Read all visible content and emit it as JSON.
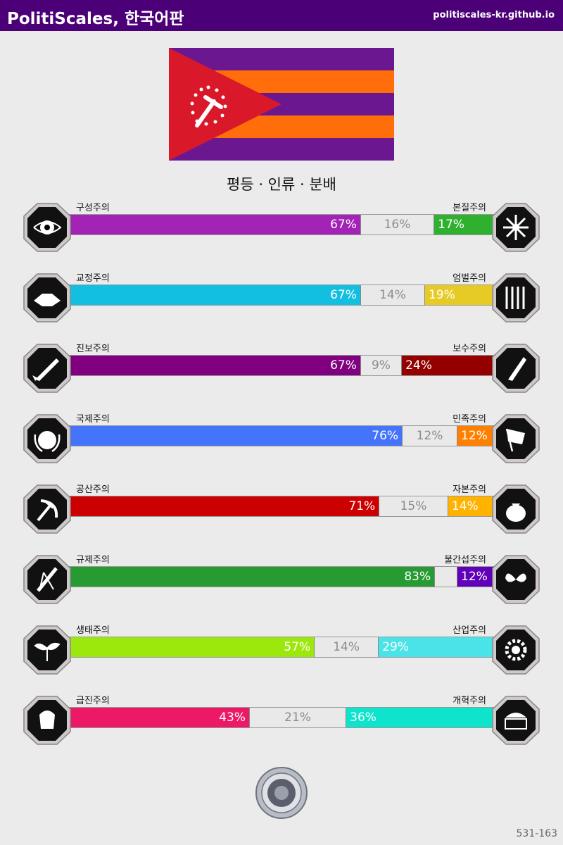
{
  "header": {
    "title": "PolitiScales, 한국어판",
    "url": "politiscales-kr.github.io"
  },
  "headline": "평등 · 인류 · 분배",
  "colors": {
    "header": "#4b0078",
    "flag_stripe_purple": "#6a1790",
    "flag_stripe_orange": "#ff6e0a",
    "flag_triangle": "#d9192a"
  },
  "axes": [
    {
      "left_label": "구성주의",
      "right_label": "본질주의",
      "left": 67,
      "mid": 16,
      "right": 17,
      "left_text": "67%",
      "mid_text": "16%",
      "right_text": "17%",
      "left_color": "#a323b7",
      "right_color": "#2fb12f",
      "left_icon": "eye-web-icon",
      "right_icon": "dna-flower-icon"
    },
    {
      "left_label": "교정주의",
      "right_label": "엄벌주의",
      "left": 67,
      "mid": 14,
      "right": 19,
      "left_text": "67%",
      "mid_text": "14%",
      "right_text": "19%",
      "left_color": "#13bfe0",
      "right_color": "#e6ca25",
      "left_icon": "handshake-icon",
      "right_icon": "prison-bars-icon"
    },
    {
      "left_label": "진보주의",
      "right_label": "보수주의",
      "left": 67,
      "mid": 9,
      "right": 24,
      "left_text": "67%",
      "mid_text": "9%",
      "right_text": "24%",
      "left_color": "#800080",
      "right_color": "#940000",
      "left_icon": "rocket-icon",
      "right_icon": "quill-pen-icon"
    },
    {
      "left_label": "국제주의",
      "right_label": "민족주의",
      "left": 76,
      "mid": 12,
      "right": 12,
      "left_text": "76%",
      "mid_text": "12%",
      "right_text": "12%",
      "left_color": "#4374fb",
      "right_color": "#ff8000",
      "left_icon": "globe-laurel-icon",
      "right_icon": "flag-icon"
    },
    {
      "left_label": "공산주의",
      "right_label": "자본주의",
      "left": 71,
      "mid": 15,
      "right": 14,
      "left_text": "71%",
      "mid_text": "15%",
      "right_text": "14%",
      "left_color": "#cc0000",
      "right_color": "#ffb300",
      "left_icon": "hammer-sickle-icon",
      "right_icon": "money-bag-icon"
    },
    {
      "left_label": "규제주의",
      "right_label": "불간섭주의",
      "left": 83,
      "mid": 5,
      "right": 12,
      "left_text": "83%",
      "mid_text": "",
      "right_text": "12%",
      "left_color": "#269b32",
      "right_color": "#6000b8",
      "left_icon": "ruler-compass-icon",
      "right_icon": "butterflies-icon"
    },
    {
      "left_label": "생태주의",
      "right_label": "산업주의",
      "left": 57,
      "mid": 14,
      "right": 29,
      "left_text": "57%",
      "mid_text": "14%",
      "right_text": "29%",
      "left_color": "#9de80c",
      "right_color": "#4ae4e8",
      "left_icon": "sprout-icon",
      "right_icon": "gear-factory-icon"
    },
    {
      "left_label": "급진주의",
      "right_label": "개혁주의",
      "left": 43,
      "mid": 21,
      "right": 36,
      "left_text": "43%",
      "mid_text": "21%",
      "right_text": "36%",
      "left_color": "#ec1a66",
      "right_color": "#0ee4cb",
      "left_icon": "raised-fist-icon",
      "right_icon": "parliament-icon"
    }
  ],
  "footer": {
    "code": "531-163",
    "seal_icon": "seal-icon"
  }
}
